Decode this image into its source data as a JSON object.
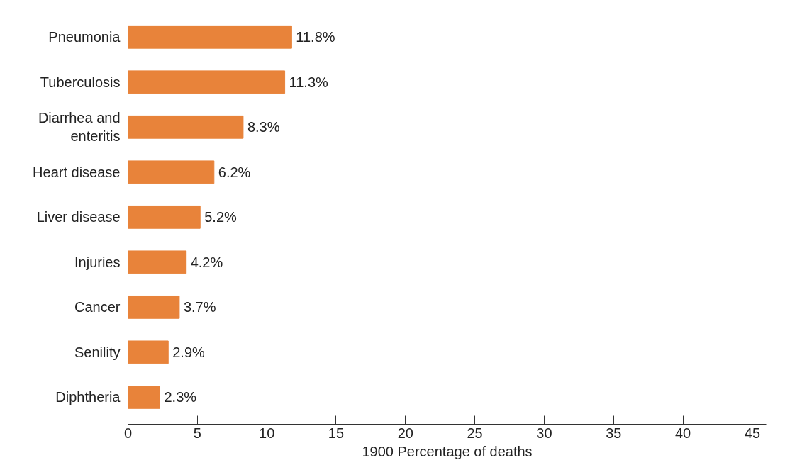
{
  "chart_data": {
    "type": "bar",
    "orientation": "horizontal",
    "xlabel": "1900 Percentage of deaths",
    "categories": [
      "Pneumonia",
      "Tuberculosis",
      "Diarrhea and\nenteritis",
      "Heart disease",
      "Liver disease",
      "Injuries",
      "Cancer",
      "Senility",
      "Diphtheria"
    ],
    "values": [
      11.8,
      11.3,
      8.3,
      6.2,
      5.2,
      4.2,
      3.7,
      2.9,
      2.3
    ],
    "value_labels": [
      "11.8%",
      "11.3%",
      "8.3%",
      "6.2%",
      "5.2%",
      "4.2%",
      "3.7%",
      "2.9%",
      "2.3%"
    ],
    "color": "#e8833a",
    "xlim": [
      0,
      46
    ],
    "xticks": [
      0,
      5,
      10,
      15,
      20,
      25,
      30,
      35,
      40,
      45
    ],
    "grid": false
  }
}
